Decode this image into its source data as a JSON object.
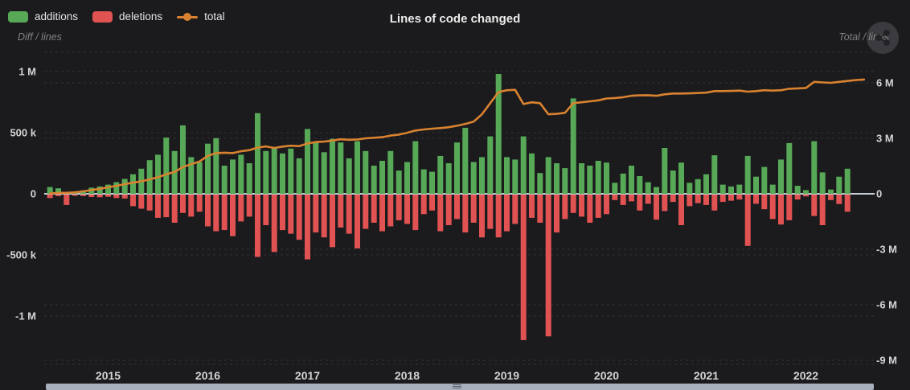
{
  "header": {
    "title": "Lines of code changed",
    "left_axis_caption": "Diff / lines",
    "right_axis_caption": "Total / lines"
  },
  "legend": {
    "items": [
      {
        "label": "additions",
        "marker": "swatch"
      },
      {
        "label": "deletions",
        "marker": "swatch"
      },
      {
        "label": "total",
        "marker": "line-dot"
      }
    ]
  },
  "colors": {
    "background": "#1b1b1e",
    "additions": "#57a957",
    "deletions": "#e15252",
    "total": "#d9822f",
    "grid": "#323238",
    "zero_line": "#c9ced4",
    "axis_label": "#d4d4d4",
    "caption": "#828282",
    "scrollbar": "#a7b0bc"
  },
  "chart_data": {
    "type": "combo",
    "title": "Lines of code changed",
    "x_type": "date-monthly",
    "months": [
      "2014-06",
      "2014-07",
      "2014-08",
      "2014-09",
      "2014-10",
      "2014-11",
      "2014-12",
      "2015-01",
      "2015-02",
      "2015-03",
      "2015-04",
      "2015-05",
      "2015-06",
      "2015-07",
      "2015-08",
      "2015-09",
      "2015-10",
      "2015-11",
      "2015-12",
      "2016-01",
      "2016-02",
      "2016-03",
      "2016-04",
      "2016-05",
      "2016-06",
      "2016-07",
      "2016-08",
      "2016-09",
      "2016-10",
      "2016-11",
      "2016-12",
      "2017-01",
      "2017-02",
      "2017-03",
      "2017-04",
      "2017-05",
      "2017-06",
      "2017-07",
      "2017-08",
      "2017-09",
      "2017-10",
      "2017-11",
      "2017-12",
      "2018-01",
      "2018-02",
      "2018-03",
      "2018-04",
      "2018-05",
      "2018-06",
      "2018-07",
      "2018-08",
      "2018-09",
      "2018-10",
      "2018-11",
      "2018-12",
      "2019-01",
      "2019-02",
      "2019-03",
      "2019-04",
      "2019-05",
      "2019-06",
      "2019-07",
      "2019-08",
      "2019-09",
      "2019-10",
      "2019-11",
      "2019-12",
      "2020-01",
      "2020-02",
      "2020-03",
      "2020-04",
      "2020-05",
      "2020-06",
      "2020-07",
      "2020-08",
      "2020-09",
      "2020-10",
      "2020-11",
      "2020-12",
      "2021-01",
      "2021-02",
      "2021-03",
      "2021-04",
      "2021-05",
      "2021-06",
      "2021-07",
      "2021-08",
      "2021-09",
      "2021-10",
      "2021-11",
      "2021-12",
      "2022-01",
      "2022-02",
      "2022-03",
      "2022-04",
      "2022-05",
      "2022-06",
      "2022-07",
      "2022-08"
    ],
    "series": [
      {
        "name": "additions",
        "type": "bar",
        "axis": "left",
        "color": "#57a957",
        "values": [
          55000,
          45000,
          12000,
          18000,
          28000,
          50000,
          60000,
          75000,
          95000,
          122000,
          160000,
          205000,
          275000,
          320000,
          460000,
          350000,
          560000,
          300000,
          260000,
          410000,
          455000,
          230000,
          280000,
          320000,
          250000,
          660000,
          350000,
          380000,
          330000,
          370000,
          290000,
          530000,
          420000,
          340000,
          450000,
          420000,
          290000,
          430000,
          350000,
          230000,
          270000,
          350000,
          190000,
          260000,
          430000,
          200000,
          180000,
          310000,
          250000,
          420000,
          540000,
          260000,
          300000,
          470000,
          980000,
          300000,
          280000,
          470000,
          330000,
          170000,
          300000,
          250000,
          210000,
          780000,
          250000,
          230000,
          270000,
          255000,
          90000,
          165000,
          230000,
          145000,
          95000,
          55000,
          375000,
          190000,
          255000,
          90000,
          120000,
          160000,
          315000,
          75000,
          60000,
          75000,
          310000,
          140000,
          220000,
          75000,
          280000,
          415000,
          65000,
          30000,
          430000,
          175000,
          35000,
          140000,
          205000,
          null,
          null
        ]
      },
      {
        "name": "deletions",
        "type": "bar",
        "axis": "left",
        "color": "#e15252",
        "values": [
          -28000,
          -12000,
          -85000,
          -10000,
          -12000,
          -20000,
          -22000,
          -18000,
          -28000,
          -32000,
          -95000,
          -115000,
          -130000,
          -190000,
          -185000,
          -230000,
          -150000,
          -180000,
          -140000,
          -260000,
          -300000,
          -290000,
          -340000,
          -220000,
          -180000,
          -510000,
          -250000,
          -470000,
          -290000,
          -320000,
          -370000,
          -530000,
          -310000,
          -350000,
          -430000,
          -270000,
          -320000,
          -440000,
          -280000,
          -230000,
          -300000,
          -260000,
          -210000,
          -240000,
          -290000,
          -160000,
          -130000,
          -300000,
          -250000,
          -200000,
          -310000,
          -230000,
          -350000,
          -280000,
          -350000,
          -300000,
          -240000,
          -1190000,
          -190000,
          -230000,
          -1160000,
          -310000,
          -200000,
          -150000,
          -180000,
          -230000,
          -190000,
          -160000,
          -45000,
          -85000,
          -55000,
          -130000,
          -75000,
          -205000,
          -135000,
          -60000,
          -250000,
          -95000,
          -70000,
          -85000,
          -130000,
          -60000,
          -50000,
          -40000,
          -420000,
          -75000,
          -120000,
          -200000,
          -245000,
          -210000,
          -40000,
          -15000,
          -175000,
          -250000,
          -45000,
          -77000,
          -140000,
          null,
          null
        ]
      },
      {
        "name": "total",
        "type": "line",
        "axis": "right",
        "color": "#d9822f",
        "values": [
          20000,
          50000,
          50000,
          80000,
          130000,
          200000,
          270000,
          350000,
          430000,
          520000,
          600000,
          680000,
          780000,
          900000,
          1050000,
          1180000,
          1450000,
          1600000,
          1750000,
          2050000,
          2200000,
          2220000,
          2200000,
          2300000,
          2360000,
          2500000,
          2560000,
          2480000,
          2550000,
          2600000,
          2580000,
          2720000,
          2800000,
          2820000,
          2880000,
          2950000,
          2920000,
          2940000,
          3000000,
          3030000,
          3060000,
          3150000,
          3200000,
          3300000,
          3420000,
          3480000,
          3520000,
          3550000,
          3600000,
          3680000,
          3780000,
          3900000,
          4300000,
          4900000,
          5500000,
          5600000,
          5620000,
          4850000,
          4950000,
          4900000,
          4300000,
          4320000,
          4380000,
          4900000,
          4950000,
          5000000,
          5050000,
          5150000,
          5180000,
          5220000,
          5300000,
          5320000,
          5330000,
          5300000,
          5380000,
          5420000,
          5420000,
          5430000,
          5450000,
          5470000,
          5550000,
          5550000,
          5560000,
          5580000,
          5520000,
          5550000,
          5600000,
          5580000,
          5600000,
          5680000,
          5700000,
          5720000,
          6050000,
          6020000,
          6000000,
          6050000,
          6100000,
          6150000,
          6180000
        ]
      }
    ],
    "left_axis": {
      "caption": "Diff / lines",
      "ticks": [
        {
          "label": "1 M",
          "value": 1000000
        },
        {
          "label": "500 k",
          "value": 500000
        },
        {
          "label": "0",
          "value": 0
        },
        {
          "label": "-500 k",
          "value": -500000
        },
        {
          "label": "-1 M",
          "value": -1000000
        }
      ]
    },
    "right_axis": {
      "caption": "Total / lines",
      "ticks": [
        {
          "label": "6 M",
          "value": 6000000
        },
        {
          "label": "3 M",
          "value": 3000000
        },
        {
          "label": "0",
          "value": 0
        },
        {
          "label": "-3 M",
          "value": -3000000
        },
        {
          "label": "-6 M",
          "value": -6000000
        },
        {
          "label": "-9 M",
          "value": -9000000
        }
      ]
    },
    "x_ticks": [
      {
        "label": "2015",
        "month_index": 7
      },
      {
        "label": "2016",
        "month_index": 19
      },
      {
        "label": "2017",
        "month_index": 31
      },
      {
        "label": "2018",
        "month_index": 43
      },
      {
        "label": "2019",
        "month_index": 55
      },
      {
        "label": "2020",
        "month_index": 67
      },
      {
        "label": "2021",
        "month_index": 79
      },
      {
        "label": "2022",
        "month_index": 91
      }
    ],
    "grid": "dashed-horizontal",
    "legend_position": "top-left"
  }
}
